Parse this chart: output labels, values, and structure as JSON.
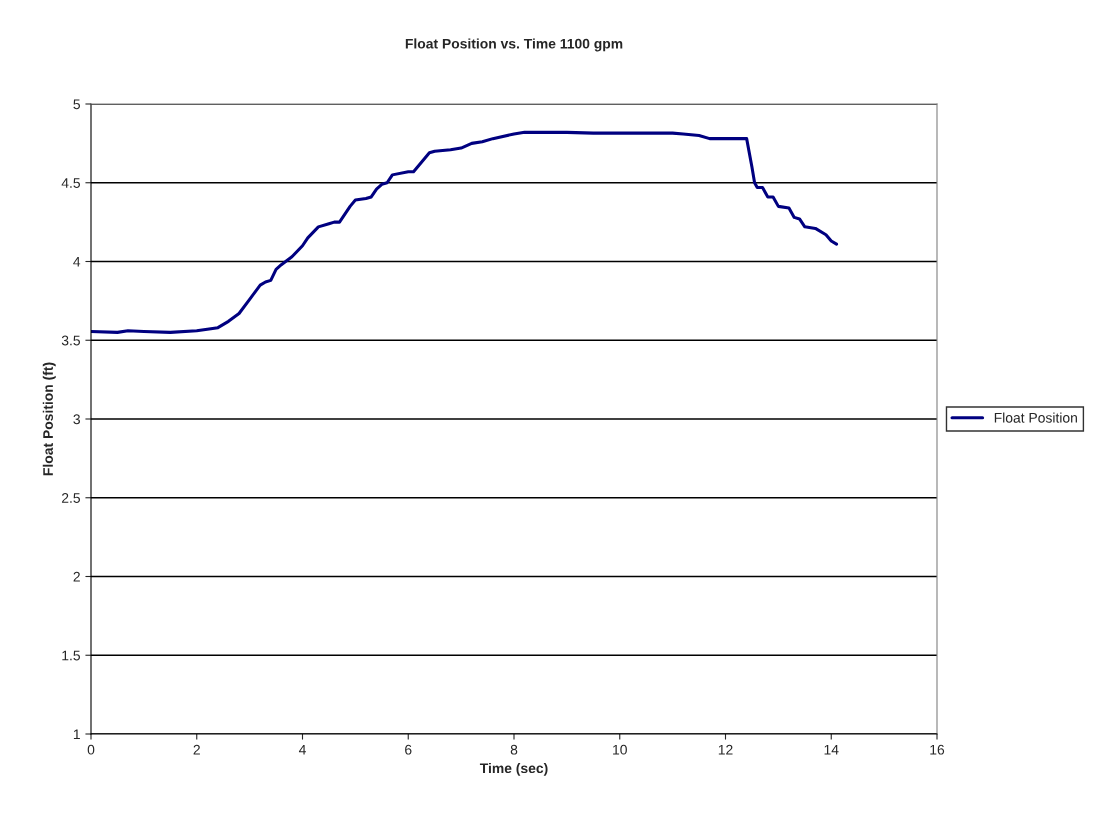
{
  "chart_data": {
    "type": "line",
    "title": "Float Position vs. Time 1100 gpm",
    "xlabel": "Time (sec)",
    "ylabel": "Float Position (ft)",
    "series": [
      {
        "name": "Float Position",
        "color": "#000080",
        "x": [
          0,
          0.5,
          0.7,
          1.0,
          1.5,
          2.0,
          2.3,
          2.4,
          2.6,
          2.8,
          3.0,
          3.2,
          3.3,
          3.4,
          3.5,
          3.6,
          3.8,
          4.0,
          4.1,
          4.3,
          4.5,
          4.6,
          4.7,
          4.9,
          5.0,
          5.2,
          5.3,
          5.4,
          5.5,
          5.6,
          5.7,
          6.0,
          6.1,
          6.4,
          6.5,
          6.8,
          7.0,
          7.2,
          7.4,
          7.6,
          8.0,
          8.2,
          9.0,
          9.5,
          10.0,
          11.0,
          11.2,
          11.5,
          11.7,
          12.3,
          12.4,
          12.5,
          12.55,
          12.6,
          12.7,
          12.8,
          12.9,
          13.0,
          13.2,
          13.3,
          13.4,
          13.5,
          13.7,
          13.9,
          14.0,
          14.1
        ],
        "values": [
          3.555,
          3.55,
          3.56,
          3.555,
          3.55,
          3.56,
          3.575,
          3.58,
          3.62,
          3.67,
          3.76,
          3.85,
          3.87,
          3.88,
          3.95,
          3.98,
          4.03,
          4.1,
          4.15,
          4.22,
          4.24,
          4.25,
          4.25,
          4.35,
          4.39,
          4.4,
          4.41,
          4.46,
          4.49,
          4.5,
          4.55,
          4.57,
          4.57,
          4.69,
          4.7,
          4.71,
          4.72,
          4.75,
          4.76,
          4.78,
          4.81,
          4.82,
          4.82,
          4.815,
          4.815,
          4.815,
          4.81,
          4.8,
          4.78,
          4.78,
          4.78,
          4.6,
          4.5,
          4.47,
          4.47,
          4.41,
          4.41,
          4.35,
          4.34,
          4.28,
          4.27,
          4.22,
          4.21,
          4.17,
          4.13,
          4.11
        ]
      }
    ],
    "xlim": [
      0,
      16
    ],
    "xticks": [
      0,
      2,
      4,
      6,
      8,
      10,
      12,
      14,
      16
    ],
    "ylim": [
      1,
      5
    ],
    "yticks": [
      1,
      1.5,
      2,
      2.5,
      3,
      3.5,
      4,
      4.5,
      5
    ],
    "grid": "y",
    "legend": "right",
    "marker": "none",
    "line_style": "solid"
  }
}
